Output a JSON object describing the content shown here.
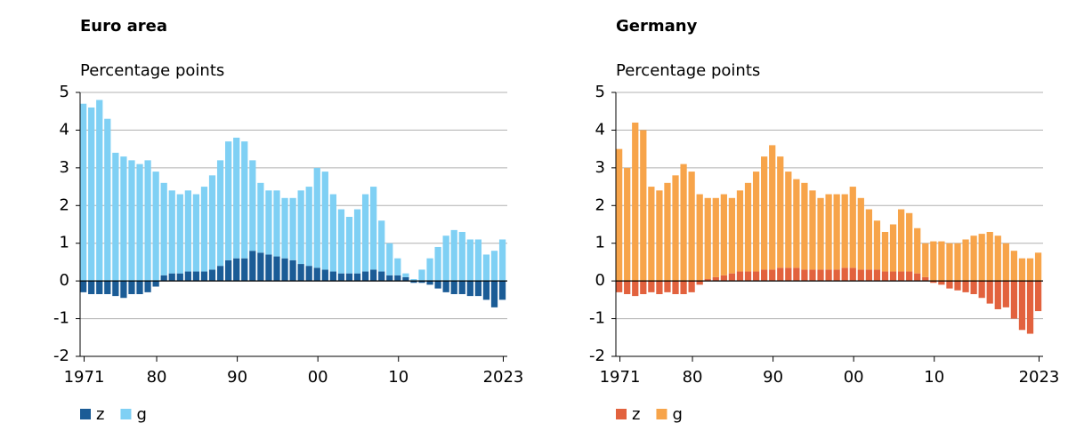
{
  "chart_data": [
    {
      "type": "bar",
      "stacked": true,
      "title": "Euro area",
      "y_label": "Percentage points",
      "x": [
        1971,
        1972,
        1973,
        1974,
        1975,
        1976,
        1977,
        1978,
        1979,
        1980,
        1981,
        1982,
        1983,
        1984,
        1985,
        1986,
        1987,
        1988,
        1989,
        1990,
        1991,
        1992,
        1993,
        1994,
        1995,
        1996,
        1997,
        1998,
        1999,
        2000,
        2001,
        2002,
        2003,
        2004,
        2005,
        2006,
        2007,
        2008,
        2009,
        2010,
        2011,
        2012,
        2013,
        2014,
        2015,
        2016,
        2017,
        2018,
        2019,
        2020,
        2021,
        2022,
        2023
      ],
      "series": [
        {
          "name": "z",
          "color": "#1b5c96",
          "values": [
            -0.3,
            -0.35,
            -0.35,
            -0.35,
            -0.4,
            -0.45,
            -0.35,
            -0.35,
            -0.3,
            -0.15,
            0.15,
            0.2,
            0.2,
            0.25,
            0.25,
            0.25,
            0.3,
            0.4,
            0.55,
            0.6,
            0.6,
            0.8,
            0.75,
            0.7,
            0.65,
            0.6,
            0.55,
            0.45,
            0.4,
            0.35,
            0.3,
            0.25,
            0.2,
            0.2,
            0.2,
            0.25,
            0.3,
            0.25,
            0.15,
            0.15,
            0.1,
            -0.05,
            -0.05,
            -0.1,
            -0.2,
            -0.3,
            -0.35,
            -0.35,
            -0.4,
            -0.4,
            -0.5,
            -0.7,
            -0.5
          ]
        },
        {
          "name": "g",
          "color": "#7fd0f4",
          "values": [
            4.7,
            4.6,
            4.8,
            4.3,
            3.4,
            3.3,
            3.2,
            3.1,
            3.2,
            2.9,
            2.45,
            2.2,
            2.1,
            2.15,
            2.05,
            2.25,
            2.5,
            2.8,
            3.15,
            3.2,
            3.1,
            2.4,
            1.85,
            1.7,
            1.75,
            1.6,
            1.65,
            1.95,
            2.1,
            2.65,
            2.6,
            2.05,
            1.7,
            1.5,
            1.7,
            2.05,
            2.2,
            1.35,
            0.85,
            0.45,
            0.1,
            0.05,
            0.3,
            0.6,
            0.9,
            1.2,
            1.35,
            1.3,
            1.1,
            1.1,
            0.7,
            0.8,
            1.1
          ]
        }
      ],
      "xlim": [
        1970.5,
        2023.5
      ],
      "ylim": [
        -2,
        5
      ],
      "yticks": [
        -2,
        -1,
        0,
        1,
        2,
        3,
        4,
        5
      ],
      "xticks": [
        {
          "value": 1971,
          "label": "1971"
        },
        {
          "value": 1980,
          "label": "80"
        },
        {
          "value": 1990,
          "label": "90"
        },
        {
          "value": 2000,
          "label": "00"
        },
        {
          "value": 2010,
          "label": "10"
        },
        {
          "value": 2023,
          "label": "2023"
        }
      ],
      "grid": true
    },
    {
      "type": "bar",
      "stacked": true,
      "title": "Germany",
      "y_label": "Percentage points",
      "x": [
        1971,
        1972,
        1973,
        1974,
        1975,
        1976,
        1977,
        1978,
        1979,
        1980,
        1981,
        1982,
        1983,
        1984,
        1985,
        1986,
        1987,
        1988,
        1989,
        1990,
        1991,
        1992,
        1993,
        1994,
        1995,
        1996,
        1997,
        1998,
        1999,
        2000,
        2001,
        2002,
        2003,
        2004,
        2005,
        2006,
        2007,
        2008,
        2009,
        2010,
        2011,
        2012,
        2013,
        2014,
        2015,
        2016,
        2017,
        2018,
        2019,
        2020,
        2021,
        2022,
        2023
      ],
      "series": [
        {
          "name": "z",
          "color": "#e2623e",
          "values": [
            -0.3,
            -0.35,
            -0.4,
            -0.35,
            -0.3,
            -0.35,
            -0.3,
            -0.35,
            -0.35,
            -0.3,
            -0.1,
            0.05,
            0.1,
            0.15,
            0.2,
            0.25,
            0.25,
            0.25,
            0.3,
            0.3,
            0.35,
            0.35,
            0.35,
            0.3,
            0.3,
            0.3,
            0.3,
            0.3,
            0.35,
            0.35,
            0.3,
            0.3,
            0.3,
            0.25,
            0.25,
            0.25,
            0.25,
            0.2,
            0.1,
            -0.05,
            -0.1,
            -0.2,
            -0.25,
            -0.3,
            -0.35,
            -0.45,
            -0.6,
            -0.75,
            -0.7,
            -1.0,
            -1.3,
            -1.4,
            -0.8
          ]
        },
        {
          "name": "g",
          "color": "#f7a44a",
          "values": [
            3.5,
            3.0,
            4.2,
            4.0,
            2.5,
            2.4,
            2.6,
            2.8,
            3.1,
            2.9,
            2.3,
            2.15,
            2.1,
            2.15,
            2.0,
            2.15,
            2.35,
            2.65,
            3.0,
            3.3,
            2.95,
            2.55,
            2.35,
            2.3,
            2.1,
            1.9,
            2.0,
            2.0,
            1.95,
            2.15,
            1.9,
            1.6,
            1.3,
            1.05,
            1.25,
            1.65,
            1.55,
            1.2,
            0.9,
            1.05,
            1.05,
            1.0,
            1.0,
            1.1,
            1.2,
            1.25,
            1.3,
            1.2,
            1.0,
            0.8,
            0.6,
            0.6,
            0.75
          ]
        }
      ],
      "xlim": [
        1970.5,
        2023.5
      ],
      "ylim": [
        -2,
        5
      ],
      "yticks": [
        -2,
        -1,
        0,
        1,
        2,
        3,
        4,
        5
      ],
      "xticks": [
        {
          "value": 1971,
          "label": "1971"
        },
        {
          "value": 1980,
          "label": "80"
        },
        {
          "value": 1990,
          "label": "90"
        },
        {
          "value": 2000,
          "label": "00"
        },
        {
          "value": 2010,
          "label": "10"
        },
        {
          "value": 2023,
          "label": "2023"
        }
      ],
      "grid": true
    }
  ]
}
